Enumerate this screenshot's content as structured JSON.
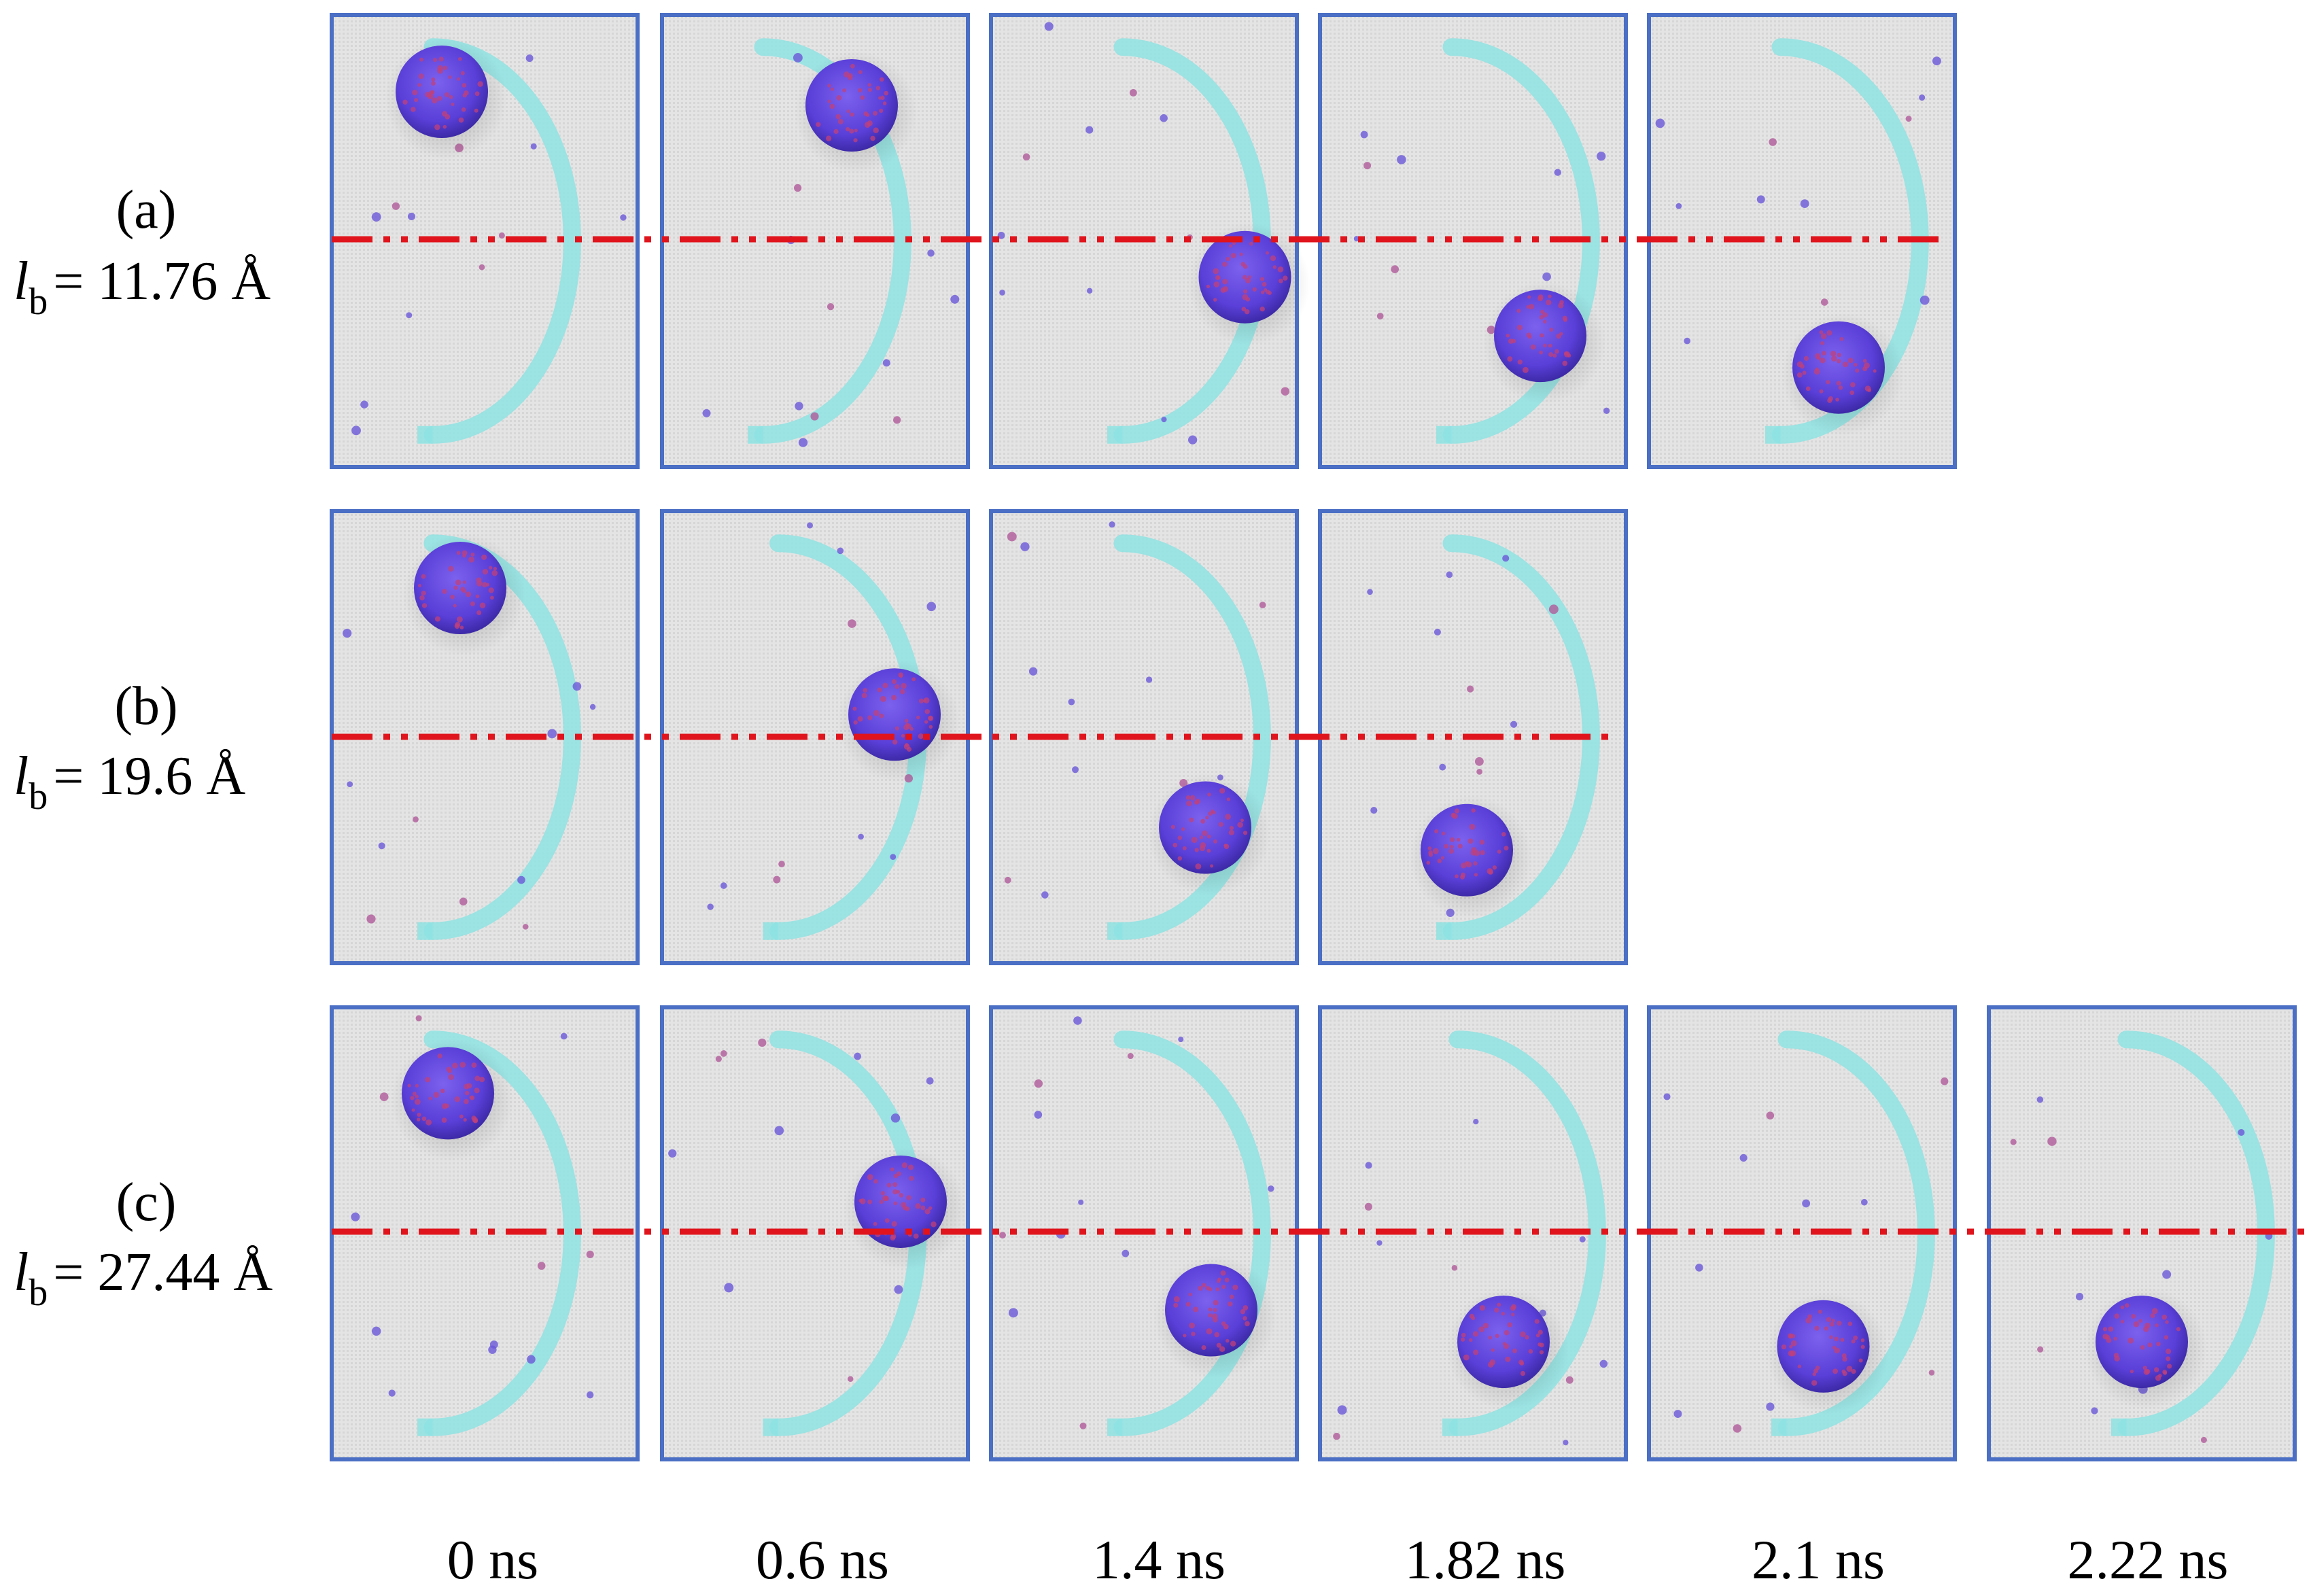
{
  "rows": [
    {
      "letter": "(a)",
      "lb_symbol": "l",
      "lb_subscript": "b",
      "lb_value": "= 11.76 Å",
      "frames": 5
    },
    {
      "letter": "(b)",
      "lb_symbol": "l",
      "lb_subscript": "b",
      "lb_value": "= 19.6 Å",
      "frames": 4
    },
    {
      "letter": "(c)",
      "lb_symbol": "l",
      "lb_subscript": "b",
      "lb_value": "= 27.44 Å",
      "frames": 6
    }
  ],
  "times": [
    "0 ns",
    "0.6 ns",
    "1.4 ns",
    "1.82 ns",
    "2.1 ns",
    "2.22 ns"
  ],
  "colors": {
    "frame_border": "#4a6fc4",
    "panel_bg": "#e1e1e1",
    "track": "#8fe3e3",
    "cluster": "#6a4fe0",
    "cluster_dots": "#c0407a",
    "dashed_line": "#e0141c"
  }
}
